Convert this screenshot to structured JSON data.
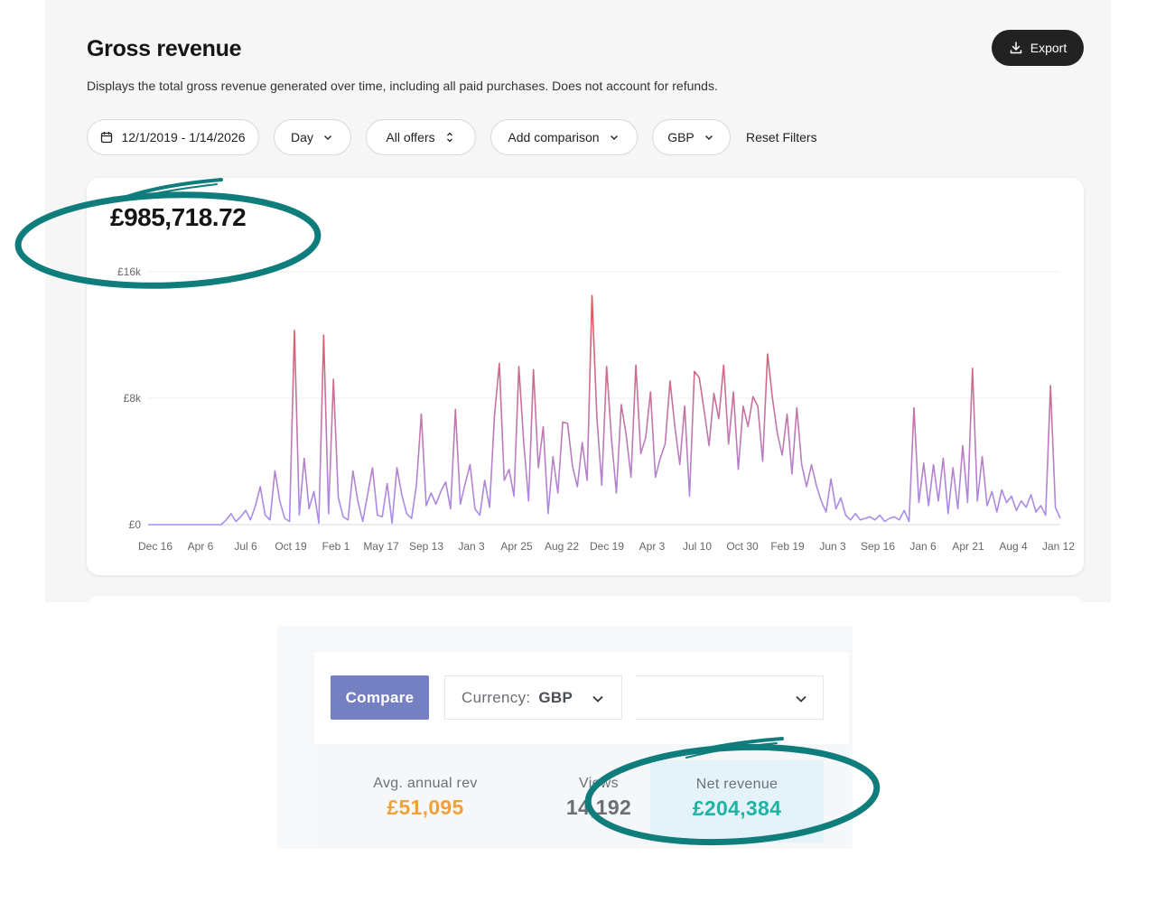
{
  "header": {
    "title": "Gross revenue",
    "subtitle": "Displays the total gross revenue generated over time, including all paid purchases. Does not account for refunds.",
    "export_label": "Export"
  },
  "filters": {
    "date_range": "12/1/2019 - 1/14/2026",
    "granularity": "Day",
    "offers": "All offers",
    "comparison": "Add comparison",
    "currency": "GBP",
    "reset_label": "Reset Filters"
  },
  "summary": {
    "total_revenue": "£985,718.72"
  },
  "colors": {
    "line_high": "#e8544a",
    "line_low": "#a78ef0",
    "annotation": "#0e7d7c",
    "compare_button": "#7480c2",
    "avg_value": "#f0a23a",
    "net_value": "#1fb3a3"
  },
  "chart_data": {
    "type": "line",
    "title": "",
    "xlabel": "",
    "ylabel": "",
    "ylim": [
      0,
      16000
    ],
    "y_ticks": [
      "£0",
      "£8k",
      "£16k"
    ],
    "x_tick_labels": [
      "Dec 16",
      "Apr 6",
      "Jul 6",
      "Oct 19",
      "Feb 1",
      "May 17",
      "Sep 13",
      "Jan 3",
      "Apr 25",
      "Aug 22",
      "Dec 19",
      "Apr 3",
      "Jul 10",
      "Oct 30",
      "Feb 19",
      "Jun 3",
      "Sep 16",
      "Jan 6",
      "Apr 21",
      "Aug 4",
      "Jan 12"
    ],
    "series": [
      {
        "name": "Gross revenue",
        "values": [
          0,
          0,
          0,
          0,
          0,
          0,
          0,
          0,
          0,
          0,
          0,
          0,
          0,
          0,
          0,
          0,
          300,
          700,
          200,
          500,
          900,
          300,
          1200,
          2400,
          600,
          300,
          3400,
          1500,
          400,
          200,
          12300,
          600,
          4200,
          1000,
          2100,
          100,
          12000,
          700,
          9200,
          1700,
          500,
          300,
          3400,
          1500,
          200,
          1900,
          3600,
          600,
          500,
          2600,
          100,
          3600,
          1900,
          700,
          400,
          2500,
          7000,
          1200,
          2000,
          1300,
          2100,
          2700,
          1000,
          7300,
          1300,
          2600,
          3800,
          1000,
          600,
          2800,
          1100,
          6900,
          10200,
          2800,
          3500,
          1800,
          10000,
          5200,
          1500,
          9800,
          3600,
          6200,
          700,
          4300,
          2000,
          6500,
          6400,
          3700,
          2400,
          5200,
          2800,
          14500,
          6800,
          2500,
          10000,
          5400,
          2000,
          7600,
          5700,
          3000,
          10100,
          4500,
          5500,
          8400,
          3000,
          4200,
          5100,
          9100,
          6200,
          3800,
          7500,
          1800,
          9700,
          9300,
          7200,
          5000,
          8300,
          6700,
          10100,
          5100,
          8400,
          3500,
          7500,
          6200,
          8100,
          7500,
          4000,
          10800,
          8000,
          5800,
          4400,
          7000,
          3200,
          7400,
          3800,
          2400,
          3800,
          2500,
          1500,
          800,
          2900,
          1000,
          1700,
          600,
          300,
          700,
          300,
          400,
          500,
          300,
          600,
          200,
          400,
          500,
          300,
          900,
          200,
          7400,
          1400,
          3900,
          1200,
          3800,
          1500,
          4200,
          700,
          3600,
          1000,
          5000,
          1400,
          9900,
          1500,
          4300,
          1200,
          2100,
          800,
          2200,
          1400,
          1800,
          900,
          1500,
          1100,
          1900,
          800,
          1200,
          600,
          8800,
          1100,
          400
        ]
      }
    ]
  },
  "comparison_panel": {
    "compare_label": "Compare",
    "currency_label": "Currency:",
    "currency_value": "GBP",
    "second_select_value": "",
    "stats": [
      {
        "label": "Avg. annual rev",
        "value": "£51,095"
      },
      {
        "label": "Views",
        "value": "14,192"
      },
      {
        "label": "Net revenue",
        "value": "£204,384"
      }
    ]
  }
}
